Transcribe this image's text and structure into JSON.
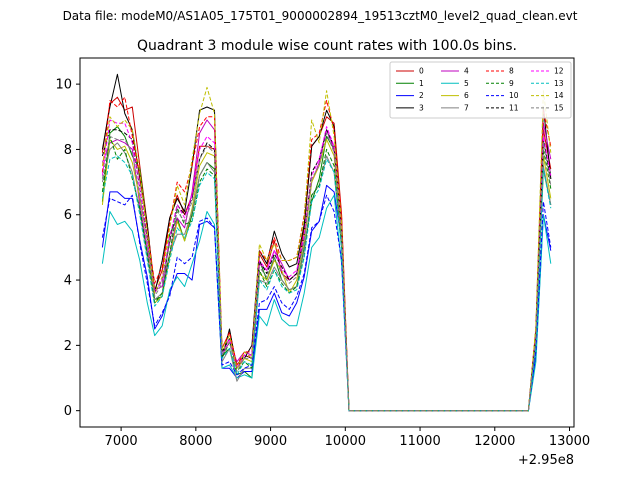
{
  "suptitle": "Data file: modeM0/AS1A05_175T01_9000002894_19513cztM0_level2_quad_clean.evt",
  "chart_data": {
    "type": "line",
    "title": "Quadrant 3 module wise count rates with 100.0s bins.",
    "xlabel": "",
    "ylabel": "",
    "offset_text": "+2.95e8",
    "x_offset": 295000000,
    "xlim": [
      6450,
      13060
    ],
    "ylim": [
      -0.5,
      10.8
    ],
    "x_ticks": [
      7000,
      8000,
      9000,
      10000,
      11000,
      12000,
      13000
    ],
    "x_tick_labels": [
      "7000",
      "8000",
      "9000",
      "10000",
      "11000",
      "12000",
      "13000"
    ],
    "y_ticks": [
      0,
      2,
      4,
      6,
      8,
      10
    ],
    "y_tick_labels": [
      "0",
      "2",
      "4",
      "6",
      "8",
      "10"
    ],
    "grid": false,
    "legend_placement": "top-right",
    "legend_columns": 4,
    "x": [
      6750,
      6850,
      6950,
      7050,
      7150,
      7250,
      7350,
      7450,
      7550,
      7650,
      7750,
      7850,
      7950,
      8050,
      8150,
      8250,
      8350,
      8450,
      8550,
      8650,
      8750,
      8850,
      8950,
      9050,
      9150,
      9250,
      9350,
      9450,
      9550,
      9650,
      9750,
      9850,
      9950,
      10050,
      10150,
      10250,
      12350,
      12450,
      12550,
      12650,
      12750
    ],
    "series": [
      {
        "name": "0",
        "color": "#cc0000",
        "dash": false,
        "values": [
          7.9,
          9.4,
          9.6,
          9.2,
          9.3,
          7.5,
          5.7,
          3.7,
          4.3,
          5.9,
          6.6,
          6.0,
          6.6,
          8.1,
          8.1,
          8.0,
          1.9,
          2.4,
          1.4,
          1.7,
          1.6,
          4.8,
          4.4,
          5.2,
          4.2,
          4.0,
          4.2,
          5.6,
          8.1,
          8.4,
          9.0,
          8.8,
          6.0,
          0.0,
          0.0,
          0.0,
          0.0,
          0.0,
          2.5,
          8.6,
          7.4
        ]
      },
      {
        "name": "1",
        "color": "#008000",
        "dash": false,
        "values": [
          6.4,
          8.5,
          8.7,
          8.4,
          7.8,
          7.4,
          5.6,
          3.4,
          3.5,
          5.4,
          5.9,
          5.2,
          6.0,
          7.2,
          7.6,
          7.4,
          1.7,
          1.9,
          1.1,
          1.2,
          1.0,
          4.6,
          4.0,
          4.7,
          4.0,
          3.7,
          3.8,
          5.0,
          6.4,
          7.1,
          8.4,
          8.0,
          5.0,
          0.0,
          0.0,
          0.0,
          0.0,
          0.0,
          2.1,
          7.4,
          6.3
        ]
      },
      {
        "name": "2",
        "color": "#0000ff",
        "dash": false,
        "values": [
          5.0,
          6.7,
          6.7,
          6.5,
          6.5,
          5.2,
          4.1,
          2.5,
          2.9,
          3.6,
          4.2,
          4.2,
          4.0,
          5.7,
          5.8,
          5.6,
          1.3,
          1.3,
          1.0,
          1.2,
          1.2,
          3.1,
          3.1,
          3.6,
          3.0,
          2.9,
          3.3,
          4.1,
          5.5,
          5.8,
          6.9,
          6.7,
          5.2,
          0.0,
          0.0,
          0.0,
          0.0,
          0.0,
          1.7,
          6.0,
          4.9
        ]
      },
      {
        "name": "3",
        "color": "#000000",
        "dash": false,
        "values": [
          8.0,
          9.3,
          10.3,
          9.1,
          8.6,
          7.1,
          5.7,
          3.6,
          4.6,
          5.9,
          6.5,
          6.1,
          7.5,
          9.2,
          9.3,
          9.2,
          1.6,
          2.5,
          1.3,
          1.6,
          2.0,
          4.9,
          4.5,
          5.5,
          4.8,
          4.4,
          4.5,
          5.7,
          8.1,
          8.4,
          9.2,
          8.7,
          5.5,
          0.0,
          0.0,
          0.0,
          0.0,
          0.0,
          2.5,
          9.3,
          7.1
        ]
      },
      {
        "name": "4",
        "color": "#bf00bf",
        "dash": false,
        "values": [
          7.6,
          8.2,
          8.3,
          8.2,
          8.0,
          6.3,
          4.9,
          3.7,
          3.8,
          4.8,
          5.9,
          5.6,
          6.7,
          8.5,
          8.9,
          8.6,
          1.7,
          2.1,
          1.5,
          1.8,
          1.7,
          4.5,
          4.3,
          4.9,
          4.5,
          4.0,
          4.2,
          5.2,
          7.0,
          7.6,
          8.6,
          8.0,
          5.3,
          0.0,
          0.0,
          0.0,
          0.0,
          0.0,
          2.4,
          8.8,
          7.7
        ]
      },
      {
        "name": "5",
        "color": "#00bfbf",
        "dash": false,
        "values": [
          4.5,
          6.1,
          5.7,
          5.8,
          5.5,
          4.6,
          3.3,
          2.3,
          2.6,
          3.7,
          4.1,
          3.8,
          4.5,
          5.2,
          6.1,
          5.7,
          1.3,
          1.4,
          1.0,
          1.1,
          1.0,
          2.9,
          2.6,
          3.4,
          2.8,
          2.6,
          2.6,
          3.6,
          5.0,
          5.3,
          6.2,
          6.6,
          4.5,
          0.0,
          0.0,
          0.0,
          0.0,
          0.0,
          1.5,
          6.0,
          4.5
        ]
      },
      {
        "name": "6",
        "color": "#bfbf00",
        "dash": false,
        "values": [
          6.3,
          8.3,
          8.0,
          8.1,
          7.6,
          6.5,
          5.2,
          3.3,
          3.5,
          4.7,
          5.8,
          5.2,
          6.2,
          7.5,
          7.9,
          7.8,
          1.8,
          2.2,
          1.3,
          1.6,
          1.5,
          4.2,
          4.0,
          4.6,
          4.3,
          3.6,
          4.0,
          5.2,
          7.0,
          7.5,
          8.3,
          7.8,
          5.2,
          0.0,
          0.0,
          0.0,
          0.0,
          0.0,
          2.3,
          7.8,
          6.5
        ]
      },
      {
        "name": "7",
        "color": "#808080",
        "dash": false,
        "values": [
          7.0,
          8.0,
          8.2,
          7.9,
          7.3,
          6.1,
          4.7,
          3.4,
          3.6,
          4.8,
          5.4,
          5.4,
          6.1,
          7.2,
          7.6,
          7.3,
          1.5,
          1.9,
          0.9,
          1.3,
          1.3,
          4.0,
          3.9,
          4.4,
          4.0,
          3.7,
          3.8,
          4.9,
          6.6,
          6.9,
          7.8,
          7.3,
          5.0,
          0.0,
          0.0,
          0.0,
          0.0,
          0.0,
          2.0,
          7.5,
          6.3
        ]
      },
      {
        "name": "8",
        "color": "#ff0000",
        "dash": true,
        "values": [
          7.3,
          9.5,
          9.3,
          9.6,
          8.4,
          7.2,
          5.5,
          3.9,
          4.4,
          5.7,
          7.0,
          6.7,
          7.5,
          8.7,
          9.0,
          9.0,
          1.9,
          2.4,
          1.4,
          1.8,
          1.8,
          4.9,
          4.6,
          5.3,
          4.6,
          4.6,
          4.7,
          6.0,
          8.3,
          8.5,
          9.5,
          8.6,
          5.9,
          0.0,
          0.0,
          0.0,
          0.0,
          0.0,
          2.5,
          9.2,
          8.1
        ]
      },
      {
        "name": "9",
        "color": "#008000",
        "dash": true,
        "values": [
          6.7,
          8.4,
          7.7,
          8.0,
          7.1,
          6.2,
          4.8,
          3.3,
          3.6,
          4.8,
          6.2,
          5.7,
          5.8,
          7.0,
          7.4,
          7.2,
          1.6,
          2.1,
          1.2,
          1.5,
          1.3,
          4.3,
          3.8,
          4.3,
          3.9,
          3.6,
          3.8,
          4.7,
          6.6,
          6.9,
          8.0,
          7.5,
          5.0,
          0.0,
          0.0,
          0.0,
          0.0,
          0.0,
          2.1,
          8.0,
          6.8
        ]
      },
      {
        "name": "10",
        "color": "#0000ff",
        "dash": true,
        "values": [
          5.3,
          6.5,
          6.4,
          6.3,
          6.6,
          5.1,
          3.9,
          2.6,
          3.0,
          3.5,
          4.7,
          4.5,
          4.7,
          5.8,
          5.9,
          5.6,
          1.4,
          1.5,
          1.1,
          1.3,
          1.4,
          3.3,
          3.4,
          3.8,
          3.3,
          3.1,
          3.5,
          4.2,
          5.6,
          5.8,
          6.6,
          6.1,
          4.6,
          0.0,
          0.0,
          0.0,
          0.0,
          0.0,
          1.8,
          6.4,
          5.0
        ]
      },
      {
        "name": "11",
        "color": "#000000",
        "dash": true,
        "values": [
          7.8,
          8.6,
          8.6,
          8.5,
          8.3,
          6.8,
          5.3,
          3.6,
          4.0,
          5.2,
          6.3,
          6.0,
          6.5,
          7.7,
          8.2,
          8.0,
          1.8,
          2.2,
          1.3,
          1.7,
          1.6,
          4.6,
          4.2,
          4.8,
          4.4,
          4.0,
          4.2,
          5.4,
          7.3,
          7.7,
          8.6,
          8.1,
          5.5,
          0.0,
          0.0,
          0.0,
          0.0,
          0.0,
          2.3,
          8.3,
          7.1
        ]
      },
      {
        "name": "12",
        "color": "#ff00ff",
        "dash": true,
        "values": [
          7.2,
          8.9,
          8.8,
          8.8,
          8.2,
          6.8,
          5.2,
          3.6,
          4.0,
          5.3,
          6.3,
          5.9,
          6.6,
          8.0,
          8.4,
          8.2,
          1.7,
          2.2,
          1.3,
          1.7,
          1.7,
          4.6,
          4.3,
          4.9,
          4.3,
          4.1,
          4.3,
          5.4,
          7.2,
          7.7,
          8.7,
          8.1,
          5.4,
          0.0,
          0.0,
          0.0,
          0.0,
          0.0,
          2.3,
          8.4,
          7.2
        ]
      },
      {
        "name": "13",
        "color": "#00bfbf",
        "dash": true,
        "values": [
          6.5,
          7.7,
          7.8,
          7.6,
          7.2,
          6.0,
          4.6,
          3.2,
          3.5,
          4.6,
          5.6,
          5.3,
          5.8,
          6.9,
          7.3,
          7.1,
          1.6,
          1.9,
          1.1,
          1.5,
          1.4,
          4.0,
          3.7,
          4.3,
          3.8,
          3.6,
          3.7,
          4.7,
          6.4,
          6.8,
          7.7,
          7.3,
          4.9,
          0.0,
          0.0,
          0.0,
          0.0,
          0.0,
          2.0,
          7.4,
          6.2
        ]
      },
      {
        "name": "14",
        "color": "#bfbf00",
        "dash": true,
        "values": [
          7.5,
          9.0,
          8.7,
          8.9,
          8.6,
          7.3,
          5.5,
          3.6,
          4.1,
          5.6,
          6.9,
          6.3,
          7.7,
          9.1,
          9.9,
          9.1,
          1.9,
          2.3,
          1.3,
          1.8,
          1.6,
          5.1,
          4.6,
          5.1,
          4.6,
          4.6,
          4.7,
          5.9,
          8.9,
          8.2,
          9.8,
          8.4,
          5.7,
          0.0,
          0.0,
          0.0,
          0.0,
          0.0,
          2.6,
          9.8,
          7.9
        ]
      },
      {
        "name": "15",
        "color": "#808080",
        "dash": true,
        "values": [
          7.1,
          8.4,
          8.3,
          8.3,
          7.9,
          6.6,
          5.1,
          3.5,
          3.9,
          5.1,
          6.1,
          5.8,
          6.4,
          7.7,
          8.1,
          7.9,
          1.7,
          2.1,
          1.2,
          1.6,
          1.6,
          4.4,
          4.1,
          4.7,
          4.2,
          3.9,
          4.1,
          5.2,
          7.1,
          7.5,
          8.5,
          7.9,
          5.3,
          0.0,
          0.0,
          0.0,
          0.0,
          0.0,
          2.2,
          8.2,
          6.9
        ]
      }
    ]
  }
}
